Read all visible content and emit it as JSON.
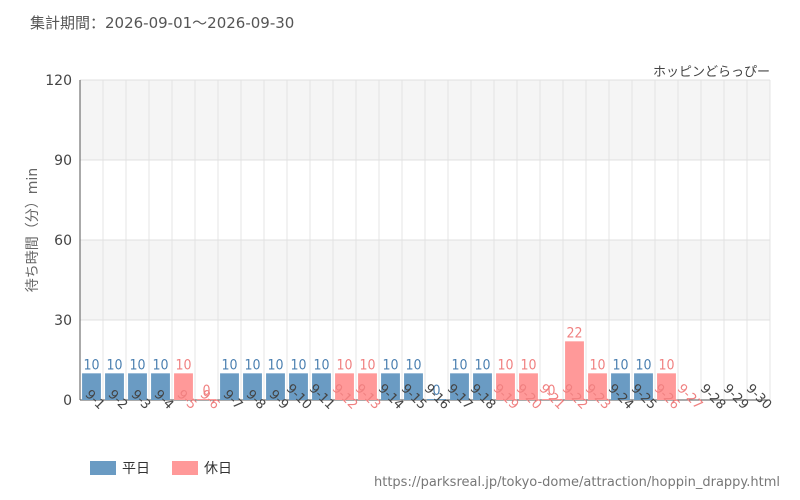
{
  "header": {
    "period": "集計期間：2026-09-01～2026-09-30",
    "attraction": "ホッピンどらっぴー"
  },
  "footer": {
    "source_url": "https://parksreal.jp/tokyo-dome/attraction/hoppin_drappy.html"
  },
  "legend": [
    {
      "label": "平日",
      "color": "#6a9bc3"
    },
    {
      "label": "休日",
      "color": "#ff9999"
    }
  ],
  "colors": {
    "weekday_bar": "#6a9bc3",
    "holiday_bar": "#ff9999",
    "weekday_text": "#4a7fb0",
    "holiday_text": "#f08080",
    "weekday_tick": "#444444",
    "holiday_tick": "#f08080"
  },
  "chart_data": {
    "type": "bar",
    "ylabel": "待ち時間（分）min",
    "ylim": [
      0,
      120
    ],
    "yticks": [
      0,
      30,
      60,
      90,
      120
    ],
    "grid": true,
    "categories": [
      "9-1",
      "9-2",
      "9-3",
      "9-4",
      "9-5",
      "9-6",
      "9-7",
      "9-8",
      "9-9",
      "9-10",
      "9-11",
      "9-12",
      "9-13",
      "9-14",
      "9-15",
      "9-16",
      "9-17",
      "9-18",
      "9-19",
      "9-20",
      "9-21",
      "9-22",
      "9-23",
      "9-24",
      "9-25",
      "9-26",
      "9-27",
      "9-28",
      "9-29",
      "9-30"
    ],
    "values": [
      10,
      10,
      10,
      10,
      10,
      0,
      10,
      10,
      10,
      10,
      10,
      10,
      10,
      10,
      10,
      0,
      10,
      10,
      10,
      10,
      0,
      22,
      10,
      10,
      10,
      10,
      null,
      null,
      null,
      null
    ],
    "day_type": [
      "weekday",
      "weekday",
      "weekday",
      "weekday",
      "holiday",
      "holiday",
      "weekday",
      "weekday",
      "weekday",
      "weekday",
      "weekday",
      "holiday",
      "holiday",
      "weekday",
      "weekday",
      "weekday",
      "weekday",
      "weekday",
      "holiday",
      "holiday",
      "holiday",
      "holiday",
      "holiday",
      "weekday",
      "weekday",
      "holiday",
      "holiday",
      "weekday",
      "weekday",
      "weekday"
    ]
  }
}
